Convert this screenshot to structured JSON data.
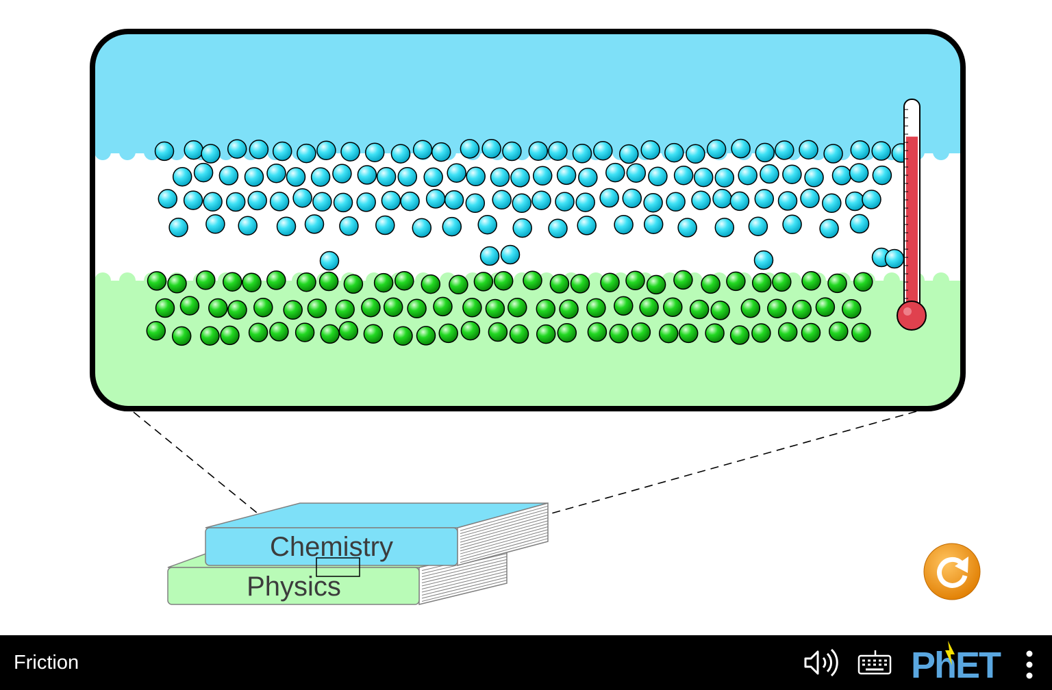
{
  "simulation": {
    "title": "Friction",
    "colors": {
      "top_material": "#7ee0f8",
      "bottom_material": "#b9fbb7",
      "top_atom": "#22d6f0",
      "bottom_atom": "#1ecf1e",
      "thermometer_fluid": "#e0414e",
      "reset_button": "#f29a1d",
      "navbar": "#000000"
    }
  },
  "books": {
    "top_label": "Chemistry",
    "bottom_label": "Physics"
  },
  "thermometer": {
    "level_fraction": 0.84
  },
  "controls": {
    "reset_all_icon": "reset-arrow-icon"
  },
  "navbar": {
    "sim_title": "Friction",
    "sound_icon": "speaker-icon",
    "keyboard_icon": "keyboard-icon",
    "logo_text": "PhET",
    "menu_icon": "vertical-dots-icon"
  }
}
